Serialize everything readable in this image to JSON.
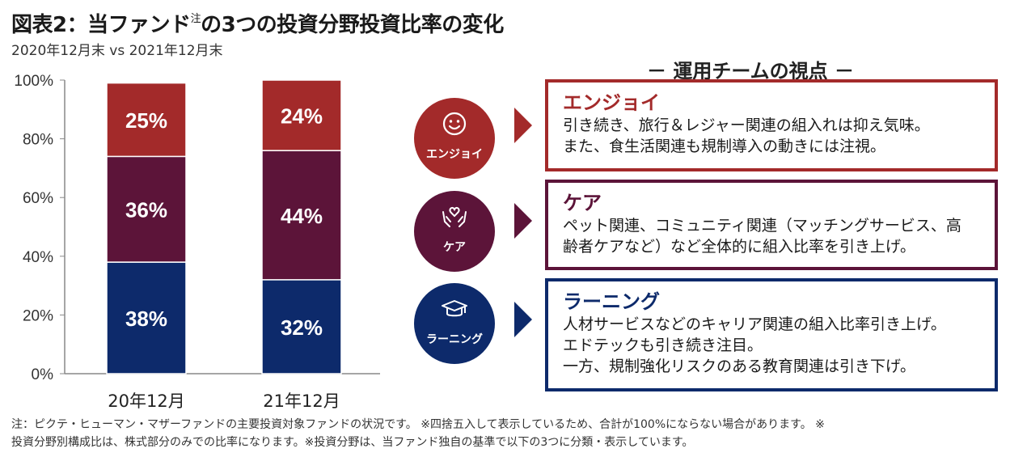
{
  "header": {
    "title": "図表2：当ファンド",
    "title_note_mark": "注",
    "title_rest": "の3つの投資分野投資比率の変化",
    "subtitle": "2020年12月末 vs 2021年12月末"
  },
  "chart_data": {
    "type": "bar",
    "stacked": true,
    "categories": [
      "20年12月",
      "21年12月"
    ],
    "series": [
      {
        "name": "ラーニング",
        "values": [
          38,
          32
        ],
        "color": "#0d2a6b"
      },
      {
        "name": "ケア",
        "values": [
          36,
          44
        ],
        "color": "#5c1439"
      },
      {
        "name": "エンジョイ",
        "values": [
          25,
          24
        ],
        "color": "#a32a2a"
      }
    ],
    "value_labels": [
      [
        "38%",
        "36%",
        "25%"
      ],
      [
        "32%",
        "44%",
        "24%"
      ]
    ],
    "ylim": [
      0,
      100
    ],
    "yticks": [
      "0%",
      "20%",
      "40%",
      "60%",
      "80%",
      "100%"
    ],
    "grid": false,
    "legend": "none"
  },
  "viewpoint_header": "－ 運用チームの視点 －",
  "categories": [
    {
      "label": "エンジョイ",
      "icon": "smile-icon",
      "color": "#a32a2a",
      "heading": "エンジョイ",
      "lines": [
        "引き続き、旅行＆レジャー関連の組入れは抑え気味。",
        "また、食生活関連も規制導入の動きには注視。"
      ]
    },
    {
      "label": "ケア",
      "icon": "heart-hands-icon",
      "color": "#5c1439",
      "heading": "ケア",
      "lines": [
        "ペット関連、コミュニティ関連（マッチングサービス、高",
        "齢者ケアなど）など全体的に組入比率を引き上げ。"
      ]
    },
    {
      "label": "ラーニング",
      "icon": "graduation-cap-icon",
      "color": "#0d2a6b",
      "heading": "ラーニング",
      "lines": [
        "人材サービスなどのキャリア関連の組入比率引き上げ。",
        "エドテックも引き続き注目。",
        "一方、規制強化リスクのある教育関連は引き下げ。"
      ]
    }
  ],
  "footnotes": [
    "注：ピクテ・ヒューマン・マザーファンドの主要投資対象ファンドの状況です。 ※四捨五入して表示しているため、合計が100%にならない場合があります。 ※",
    "投資分野別構成比は、株式部分のみでの比率になります。※投資分野は、当ファンド独自の基準で以下の3つに分類・表示しています。"
  ]
}
